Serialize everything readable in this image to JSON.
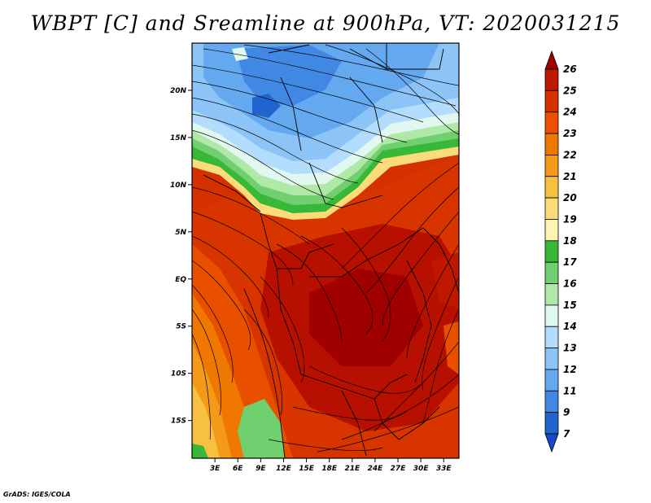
{
  "title": "WBPT [C] and Sreamline at 900hPa, VT: 2020031215",
  "credit": "GrADS: IGES/COLA",
  "map": {
    "lat_labels": [
      "20N",
      "15N",
      "10N",
      "5N",
      "EQ",
      "5S",
      "10S",
      "15S"
    ],
    "lat_values": [
      20,
      15,
      10,
      5,
      0,
      -5,
      -10,
      -15
    ],
    "lon_labels": [
      "3E",
      "6E",
      "9E",
      "12E",
      "15E",
      "18E",
      "21E",
      "24E",
      "27E",
      "30E",
      "33E"
    ],
    "lon_values": [
      3,
      6,
      9,
      12,
      15,
      18,
      21,
      24,
      27,
      30,
      33
    ],
    "lon_range": [
      0,
      35
    ],
    "lat_range": [
      -19,
      25
    ]
  },
  "colorbar": {
    "labels": [
      "26",
      "25",
      "24",
      "23",
      "22",
      "21",
      "20",
      "19",
      "18",
      "17",
      "16",
      "15",
      "14",
      "13",
      "12",
      "11",
      "9",
      "7"
    ],
    "colors": [
      "#a00000",
      "#c01800",
      "#d83000",
      "#ec5000",
      "#f07800",
      "#f49a18",
      "#f8c040",
      "#fcdc78",
      "#fcf4b4",
      "#38b838",
      "#70d070",
      "#b0e8a8",
      "#e0f8f0",
      "#b4dcfc",
      "#8cc4f8",
      "#64a8f0",
      "#4088e4",
      "#2064d0",
      "#1848c8"
    ]
  }
}
